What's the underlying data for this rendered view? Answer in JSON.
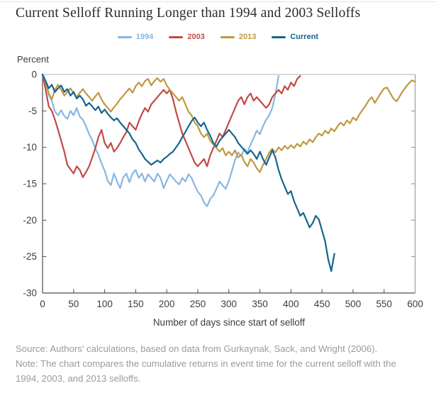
{
  "title": "Current Selloff Running Longer than 1994 and 2003 Selloffs",
  "y_axis_top_label": "Percent",
  "source": "Source: Authors' calculations, based on data from Gurkaynak, Sack, and Wright (2006).",
  "note_line1": "Note: The chart compares the cumulative returns in event time for the current selloff with the",
  "note_line2": "1994, 2003, and 2013 selloffs.",
  "text_colors": {
    "title": "#2b2b33",
    "axis_text": "#3d3d3d",
    "footnote": "#9b9b9b"
  },
  "chart_data": {
    "type": "line",
    "title": "Current Selloff Running Longer than 1994 and 2003 Selloffs",
    "xlabel": "Number of days since start of selloff",
    "ylabel": "Percent",
    "xlim": [
      0,
      600
    ],
    "ylim": [
      -30,
      0
    ],
    "x_ticks": [
      0,
      50,
      100,
      150,
      200,
      250,
      300,
      350,
      400,
      450,
      500,
      550,
      600
    ],
    "y_ticks": [
      0,
      -5,
      -10,
      -15,
      -20,
      -25,
      -30
    ],
    "grid": false,
    "legend_position": "top-center",
    "x_unit": "days since start of selloff",
    "x_step": 5,
    "series": [
      {
        "name": "1994",
        "color": "#88b7e0",
        "y": [
          0,
          -1.2,
          -2.8,
          -3.6,
          -5.1,
          -5.6,
          -4.9,
          -5.7,
          -6.1,
          -5.0,
          -5.6,
          -4.6,
          -5.8,
          -6.2,
          -7.1,
          -8.2,
          -9.0,
          -10.2,
          -11.0,
          -12.2,
          -13.2,
          -14.6,
          -15.2,
          -13.6,
          -14.7,
          -15.6,
          -14.1,
          -13.6,
          -14.8,
          -13.6,
          -13.1,
          -14.2,
          -13.6,
          -14.7,
          -13.7,
          -14.2,
          -14.7,
          -13.6,
          -14.2,
          -15.6,
          -14.6,
          -13.7,
          -14.2,
          -14.7,
          -15.1,
          -14.2,
          -14.7,
          -13.7,
          -14.2,
          -15.2,
          -16.1,
          -16.6,
          -17.6,
          -18.1,
          -17.1,
          -16.6,
          -15.7,
          -14.7,
          -15.2,
          -15.7,
          -14.6,
          -13.2,
          -11.7,
          -10.7,
          -11.2,
          -10.2,
          -10.7,
          -9.6,
          -8.7,
          -7.7,
          -8.2,
          -7.1,
          -6.2,
          -5.6,
          -4.6,
          -2.7,
          -0.2
        ]
      },
      {
        "name": "2003",
        "color": "#bf4b47",
        "y": [
          0,
          -2.1,
          -4.4,
          -5.0,
          -6.2,
          -7.6,
          -9.1,
          -10.6,
          -12.4,
          -13.0,
          -13.6,
          -12.6,
          -13.1,
          -14.1,
          -13.4,
          -12.6,
          -11.4,
          -10.1,
          -8.6,
          -7.6,
          -9.4,
          -10.1,
          -9.4,
          -10.6,
          -10.1,
          -9.4,
          -8.6,
          -7.9,
          -6.6,
          -7.1,
          -7.6,
          -6.4,
          -5.4,
          -4.6,
          -5.1,
          -4.1,
          -3.6,
          -3.1,
          -2.6,
          -2.1,
          -2.6,
          -2.1,
          -3.4,
          -5.1,
          -6.6,
          -8.1,
          -9.1,
          -10.1,
          -11.1,
          -12.1,
          -12.6,
          -12.1,
          -11.6,
          -12.6,
          -11.1,
          -10.1,
          -9.1,
          -8.1,
          -8.6,
          -7.6,
          -6.6,
          -5.6,
          -4.6,
          -3.6,
          -3.1,
          -4.1,
          -3.1,
          -2.6,
          -3.6,
          -3.1,
          -3.6,
          -4.1,
          -4.6,
          -4.1,
          -3.1,
          -2.6,
          -2.1,
          -2.6,
          -1.6,
          -2.1,
          -1.1,
          -1.6,
          -0.6,
          -0.2
        ]
      },
      {
        "name": "2013",
        "color": "#c0993f",
        "y": [
          0,
          -1.1,
          -2.6,
          -3.4,
          -2.1,
          -1.4,
          -2.1,
          -2.9,
          -2.4,
          -1.9,
          -2.6,
          -3.1,
          -2.5,
          -2.0,
          -2.6,
          -3.1,
          -3.6,
          -3.0,
          -2.5,
          -3.4,
          -4.1,
          -4.6,
          -5.1,
          -4.5,
          -4.0,
          -3.4,
          -2.9,
          -2.4,
          -1.9,
          -2.5,
          -1.6,
          -1.1,
          -1.6,
          -0.9,
          -0.6,
          -1.5,
          -0.9,
          -0.5,
          -1.0,
          -0.6,
          -1.5,
          -2.1,
          -2.6,
          -3.1,
          -3.6,
          -3.1,
          -4.1,
          -5.1,
          -5.6,
          -6.6,
          -7.1,
          -8.1,
          -8.6,
          -8.1,
          -9.1,
          -9.6,
          -10.1,
          -10.6,
          -10.1,
          -11.1,
          -10.6,
          -11.1,
          -10.4,
          -11.4,
          -11.0,
          -12.0,
          -12.6,
          -11.6,
          -12.1,
          -12.9,
          -13.4,
          -12.4,
          -11.6,
          -10.7,
          -10.2,
          -10.7,
          -10.0,
          -10.4,
          -9.8,
          -10.2,
          -9.7,
          -10.1,
          -9.5,
          -9.9,
          -9.2,
          -9.6,
          -8.9,
          -9.3,
          -8.6,
          -8.1,
          -8.4,
          -7.7,
          -8.1,
          -7.4,
          -7.8,
          -7.1,
          -6.6,
          -7.0,
          -6.3,
          -6.7,
          -5.9,
          -6.3,
          -5.5,
          -4.9,
          -4.3,
          -3.6,
          -3.1,
          -3.9,
          -3.2,
          -2.5,
          -1.9,
          -1.8,
          -2.6,
          -3.3,
          -3.7,
          -3.0,
          -2.3,
          -1.7,
          -1.2,
          -0.8,
          -1.0
        ]
      },
      {
        "name": "Current",
        "color": "#17648f",
        "y": [
          0,
          -0.9,
          -1.9,
          -1.4,
          -2.4,
          -1.9,
          -1.5,
          -2.4,
          -2.0,
          -2.9,
          -2.4,
          -3.3,
          -2.9,
          -3.4,
          -4.3,
          -3.9,
          -4.4,
          -4.9,
          -4.4,
          -5.3,
          -4.8,
          -5.4,
          -5.9,
          -6.3,
          -6.0,
          -6.6,
          -7.1,
          -7.6,
          -8.1,
          -8.9,
          -9.4,
          -10.3,
          -10.9,
          -11.6,
          -12.0,
          -12.4,
          -12.1,
          -11.8,
          -12.1,
          -11.6,
          -11.3,
          -10.9,
          -10.6,
          -10.0,
          -9.4,
          -8.6,
          -7.9,
          -7.1,
          -6.4,
          -5.9,
          -6.6,
          -7.1,
          -6.6,
          -7.6,
          -8.4,
          -9.4,
          -9.9,
          -9.1,
          -8.6,
          -8.1,
          -7.6,
          -8.1,
          -8.6,
          -9.4,
          -9.9,
          -10.4,
          -10.9,
          -10.4,
          -10.9,
          -11.6,
          -10.6,
          -11.6,
          -12.4,
          -11.4,
          -10.4,
          -11.4,
          -13.1,
          -14.4,
          -15.4,
          -16.4,
          -16.0,
          -17.4,
          -18.4,
          -19.4,
          -19.0,
          -20.0,
          -21.0,
          -20.4,
          -19.4,
          -19.9,
          -21.4,
          -22.9,
          -25.4,
          -27.0,
          -24.6
        ]
      }
    ]
  }
}
